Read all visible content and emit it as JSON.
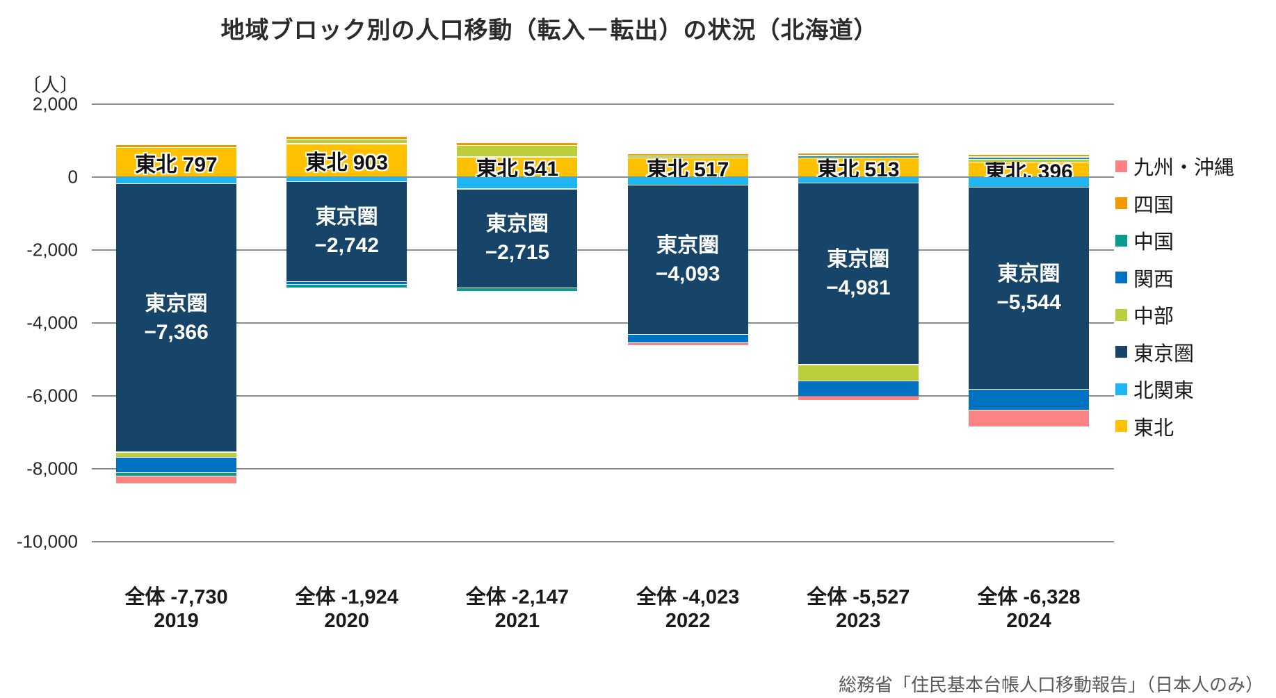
{
  "title": "地域ブロック別の人口移動（転入－転出）の状況（北海道）",
  "unit_label": "〔人〕",
  "source": "総務省「住民基本台帳人口移動報告」（日本人のみ）",
  "y_axis": {
    "ticks": [
      {
        "label": "2,000",
        "value": 2000
      },
      {
        "label": "0",
        "value": 0
      },
      {
        "label": "-2,000",
        "value": -2000
      },
      {
        "label": "-4,000",
        "value": -4000
      },
      {
        "label": "-6,000",
        "value": -6000
      },
      {
        "label": "-8,000",
        "value": -8000
      },
      {
        "label": "-10,000",
        "value": -10000
      }
    ]
  },
  "legend": [
    {
      "label": "九州・沖縄",
      "color": "#FC8383"
    },
    {
      "label": "四国",
      "color": "#F39800"
    },
    {
      "label": "中国",
      "color": "#0A9B90"
    },
    {
      "label": "関西",
      "color": "#0072C1"
    },
    {
      "label": "中部",
      "color": "#BCCE3B"
    },
    {
      "label": "東京圏",
      "color": "#164569"
    },
    {
      "label": "北関東",
      "color": "#1FB5F2"
    },
    {
      "label": "東北",
      "color": "#FEC100"
    }
  ],
  "chart_data": {
    "type": "bar",
    "stacked": true,
    "grid": true,
    "legend_position": "right",
    "ylim": [
      -10000,
      2000
    ],
    "ylabel": "〔人〕",
    "categories": [
      "2019",
      "2020",
      "2021",
      "2022",
      "2023",
      "2024"
    ],
    "total_labels": [
      "全体 -7,730",
      "全体 -1,924",
      "全体 -2,147",
      "全体 -4,023",
      "全体 -5,527",
      "全体 -6,328"
    ],
    "totals": [
      -7730,
      -1924,
      -2147,
      -4023,
      -5527,
      -6328
    ],
    "series": [
      {
        "name": "東北",
        "values": [
          797,
          903,
          541,
          517,
          513,
          396
        ]
      },
      {
        "name": "北関東",
        "values": [
          -190,
          -130,
          -330,
          -230,
          -175,
          -285
        ]
      },
      {
        "name": "東京圏",
        "values": [
          -7366,
          -2742,
          -2715,
          -4093,
          -4981,
          -5544
        ]
      },
      {
        "name": "中部",
        "values": [
          -135,
          130,
          320,
          65,
          -440,
          80
        ]
      },
      {
        "name": "関西",
        "values": [
          -420,
          -80,
          0,
          -230,
          -420,
          -570
        ]
      },
      {
        "name": "中国",
        "values": [
          -95,
          -95,
          -100,
          0,
          65,
          70
        ]
      },
      {
        "name": "四国",
        "values": [
          75,
          75,
          80,
          48,
          76,
          60
        ]
      },
      {
        "name": "九州・沖縄",
        "values": [
          -210,
          0,
          0,
          -75,
          -115,
          -455
        ]
      }
    ],
    "bar_labels": {
      "tohoku": [
        "東北  797",
        "東北  903",
        "東北  541",
        "東北  517",
        "東北  513",
        "東北, 396"
      ],
      "tokyo_name": "東京圏",
      "tokyo_values": [
        "−7,366",
        "−2,742",
        "−2,715",
        "−4,093",
        "−4,981",
        "−5,544"
      ]
    }
  }
}
